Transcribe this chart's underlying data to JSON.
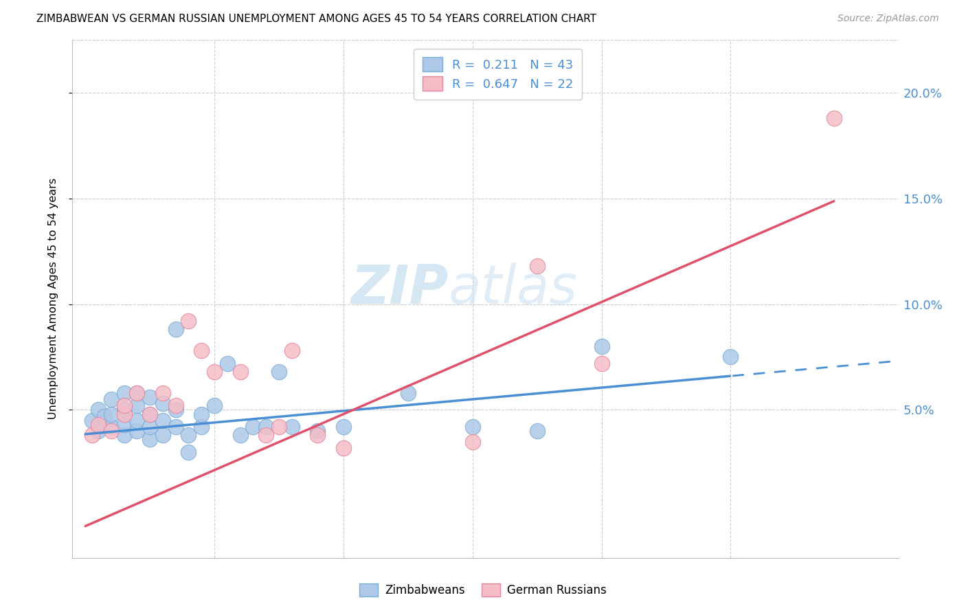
{
  "title": "ZIMBABWEAN VS GERMAN RUSSIAN UNEMPLOYMENT AMONG AGES 45 TO 54 YEARS CORRELATION CHART",
  "source": "Source: ZipAtlas.com",
  "ylabel": "Unemployment Among Ages 45 to 54 years",
  "y_tick_labels": [
    "5.0%",
    "10.0%",
    "15.0%",
    "20.0%"
  ],
  "y_tick_values": [
    0.05,
    0.1,
    0.15,
    0.2
  ],
  "xlim": [
    -0.001,
    0.063
  ],
  "ylim": [
    -0.02,
    0.225
  ],
  "zim_color": "#adc8e8",
  "zim_edge_color": "#7aadd6",
  "gr_color": "#f5bdc7",
  "gr_edge_color": "#e8849a",
  "line_blue": "#4a8fd4",
  "line_pink": "#e0506a",
  "text_blue": "#4a8fd4",
  "R_zim": "0.211",
  "N_zim": "43",
  "R_gr": "0.647",
  "N_gr": "22",
  "zim_line_intercept": 0.0385,
  "zim_line_slope": 0.55,
  "gr_line_intercept": -0.005,
  "gr_line_slope": 2.65,
  "zim_x": [
    0.0005,
    0.001,
    0.001,
    0.0015,
    0.002,
    0.002,
    0.002,
    0.003,
    0.003,
    0.003,
    0.003,
    0.004,
    0.004,
    0.004,
    0.004,
    0.005,
    0.005,
    0.005,
    0.005,
    0.006,
    0.006,
    0.006,
    0.007,
    0.007,
    0.007,
    0.008,
    0.008,
    0.009,
    0.009,
    0.01,
    0.011,
    0.012,
    0.013,
    0.014,
    0.015,
    0.016,
    0.018,
    0.02,
    0.025,
    0.03,
    0.035,
    0.04,
    0.05
  ],
  "zim_y": [
    0.045,
    0.04,
    0.05,
    0.047,
    0.042,
    0.048,
    0.055,
    0.038,
    0.043,
    0.05,
    0.058,
    0.04,
    0.045,
    0.052,
    0.058,
    0.036,
    0.042,
    0.048,
    0.056,
    0.038,
    0.045,
    0.053,
    0.042,
    0.05,
    0.088,
    0.03,
    0.038,
    0.042,
    0.048,
    0.052,
    0.072,
    0.038,
    0.042,
    0.042,
    0.068,
    0.042,
    0.04,
    0.042,
    0.058,
    0.042,
    0.04,
    0.08,
    0.075
  ],
  "gr_x": [
    0.0005,
    0.001,
    0.002,
    0.003,
    0.003,
    0.004,
    0.005,
    0.006,
    0.007,
    0.008,
    0.009,
    0.01,
    0.012,
    0.014,
    0.015,
    0.016,
    0.018,
    0.02,
    0.03,
    0.035,
    0.04,
    0.058
  ],
  "gr_y": [
    0.038,
    0.043,
    0.04,
    0.048,
    0.052,
    0.058,
    0.048,
    0.058,
    0.052,
    0.092,
    0.078,
    0.068,
    0.068,
    0.038,
    0.042,
    0.078,
    0.038,
    0.032,
    0.035,
    0.118,
    0.072,
    0.188
  ],
  "vlines_x": [
    0.01,
    0.02,
    0.03,
    0.04,
    0.05
  ],
  "watermark_zip_color": "#c8dff0",
  "watermark_atlas_color": "#c8ddf0"
}
